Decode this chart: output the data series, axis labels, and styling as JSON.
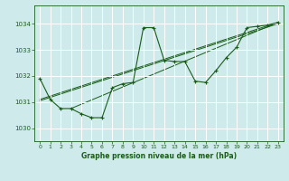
{
  "title": "Graphe pression niveau de la mer (hPa)",
  "bg_color": "#ceeaea",
  "grid_color": "#ffffff",
  "line_color": "#1a5c1a",
  "xlim": [
    -0.5,
    23.5
  ],
  "ylim": [
    1029.5,
    1034.7
  ],
  "yticks": [
    1030,
    1031,
    1032,
    1033,
    1034
  ],
  "xticks": [
    0,
    1,
    2,
    3,
    4,
    5,
    6,
    7,
    8,
    9,
    10,
    11,
    12,
    13,
    14,
    15,
    16,
    17,
    18,
    19,
    20,
    21,
    22,
    23
  ],
  "main_series": [
    [
      0,
      1031.9
    ],
    [
      1,
      1031.1
    ],
    [
      2,
      1030.75
    ],
    [
      3,
      1030.75
    ],
    [
      4,
      1030.55
    ],
    [
      5,
      1030.4
    ],
    [
      6,
      1030.4
    ],
    [
      7,
      1031.55
    ],
    [
      8,
      1031.7
    ],
    [
      9,
      1031.75
    ],
    [
      10,
      1033.85
    ],
    [
      11,
      1033.85
    ],
    [
      12,
      1032.6
    ],
    [
      13,
      1032.55
    ],
    [
      14,
      1032.55
    ],
    [
      15,
      1031.8
    ],
    [
      16,
      1031.75
    ],
    [
      17,
      1032.2
    ],
    [
      18,
      1032.7
    ],
    [
      19,
      1033.1
    ],
    [
      20,
      1033.85
    ],
    [
      21,
      1033.9
    ],
    [
      22,
      1033.95
    ],
    [
      23,
      1034.05
    ]
  ],
  "trend_lines": [
    [
      [
        0,
        1031.1
      ],
      [
        23,
        1034.05
      ]
    ],
    [
      [
        0,
        1031.05
      ],
      [
        23,
        1034.0
      ]
    ],
    [
      [
        3,
        1030.75
      ],
      [
        23,
        1034.05
      ]
    ]
  ]
}
